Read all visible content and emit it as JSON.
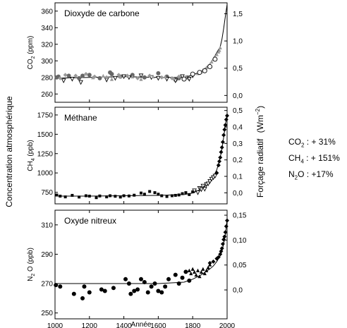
{
  "figure": {
    "y_label_left": "Concentration atmosphérique",
    "y_label_right_main": "Forçage radiatif",
    "y_label_right_unit_base": "(Wm",
    "y_label_right_unit_exp": "−2",
    "y_label_right_unit_close": ")"
  },
  "summary": [
    {
      "formula": "CO",
      "sub": "2",
      "text": " : + 31%"
    },
    {
      "formula": "CH",
      "sub": "4",
      "text": " : + 151%"
    },
    {
      "formula": "N",
      "sub": "2",
      "text": "O : +17%"
    }
  ],
  "chart_data": [
    {
      "type": "scatter",
      "title": "Dioxyde de carbone",
      "ylabel_prefix": "CO",
      "ylabel_sub": "2",
      "ylabel_suffix": "(ppm)",
      "xlim": [
        1000,
        2000
      ],
      "ylim": [
        250,
        370
      ],
      "yticks": [
        260,
        280,
        300,
        320,
        340,
        360
      ],
      "right_ylim": [
        -0.125,
        1.7
      ],
      "right_ticks": [
        "0,0",
        "0,5",
        "1,0",
        "1,5"
      ],
      "right_tick_values": [
        0.0,
        0.5,
        1.0,
        1.5
      ],
      "show_xticklabels": false,
      "series": [
        {
          "marker": "circle",
          "color": "#666666",
          "x": [
            1010,
            1020,
            1080,
            1140,
            1160,
            1200,
            1260,
            1320,
            1330,
            1380,
            1450,
            1520,
            1600,
            1650,
            1700,
            1720,
            1750,
            1770
          ],
          "y": [
            280,
            281,
            282,
            279,
            282,
            283,
            279,
            286,
            284,
            281,
            283,
            280,
            285,
            281,
            277,
            279,
            278,
            280
          ]
        },
        {
          "marker": "triangle-down",
          "color": "#000000",
          "x": [
            1050,
            1100,
            1150,
            1300,
            1350,
            1400,
            1430,
            1500,
            1560,
            1600,
            1650,
            1700,
            1740,
            1780,
            1800
          ],
          "y": [
            276,
            278,
            274,
            277,
            279,
            281,
            280,
            282,
            280,
            279,
            278,
            276,
            281,
            278,
            282
          ]
        },
        {
          "marker": "diamond",
          "color": "#999999",
          "x": [
            1030,
            1060,
            1120,
            1180,
            1230,
            1300,
            1370,
            1420,
            1480,
            1550,
            1620,
            1680,
            1720
          ],
          "y": [
            279,
            283,
            282,
            284,
            281,
            280,
            283,
            282,
            279,
            282,
            280,
            279,
            281
          ]
        },
        {
          "marker": "triangle-up",
          "color": "#999999",
          "x": [
            1220,
            1280,
            1330,
            1380,
            1450,
            1500,
            1570,
            1640,
            1690,
            1760,
            1800,
            1830,
            1850,
            1860,
            1870,
            1880,
            1890,
            1900,
            1910,
            1920,
            1930,
            1940,
            1950,
            1955,
            1960
          ],
          "y": [
            280,
            282,
            278,
            281,
            281,
            278,
            281,
            281,
            279,
            281,
            284,
            285,
            287,
            289,
            290,
            292,
            294,
            296,
            299,
            302,
            305,
            308,
            311,
            313,
            316
          ]
        },
        {
          "marker": "circle-open",
          "color": "#000000",
          "x": [
            1750,
            1800,
            1840,
            1870,
            1900,
            1930
          ],
          "y": [
            278,
            284,
            286,
            288,
            293,
            302
          ]
        }
      ],
      "curve": {
        "x": [
          1000,
          1200,
          1400,
          1600,
          1750,
          1800,
          1850,
          1900,
          1920,
          1940,
          1960,
          1970,
          1980,
          1990,
          2000
        ],
        "y": [
          279,
          280,
          281,
          280,
          280,
          283,
          287,
          296,
          303,
          310,
          317,
          326,
          339,
          354,
          368
        ]
      }
    },
    {
      "type": "scatter",
      "title": "Méthane",
      "ylabel_prefix": "CH",
      "ylabel_sub": "4",
      "ylabel_suffix": "(ppb)",
      "xlim": [
        1000,
        2000
      ],
      "ylim": [
        600,
        1850
      ],
      "yticks": [
        750,
        1000,
        1250,
        1500,
        1750
      ],
      "right_ylim": [
        -0.067,
        0.52
      ],
      "right_ticks": [
        "0,0",
        "0,1",
        "0,2",
        "0,3",
        "0,4",
        "0,5"
      ],
      "right_tick_values": [
        0.0,
        0.1,
        0.2,
        0.3,
        0.4,
        0.5
      ],
      "show_xticklabels": false,
      "series": [
        {
          "marker": "square",
          "color": "#000000",
          "x": [
            1010,
            1030,
            1060,
            1100,
            1140,
            1180,
            1200,
            1240,
            1260,
            1300,
            1320,
            1350,
            1380,
            1400,
            1430,
            1460,
            1500,
            1520,
            1550,
            1580,
            1600,
            1620,
            1650,
            1680,
            1700,
            1720,
            1740,
            1760,
            1780,
            1800
          ],
          "y": [
            715,
            700,
            690,
            710,
            688,
            705,
            700,
            680,
            702,
            690,
            705,
            698,
            688,
            705,
            702,
            712,
            740,
            725,
            760,
            745,
            725,
            705,
            695,
            705,
            710,
            715,
            732,
            745,
            720,
            755
          ]
        },
        {
          "marker": "triangle-down",
          "color": "#000000",
          "x": [
            1810,
            1830,
            1840,
            1850,
            1860,
            1870,
            1880,
            1890,
            1900,
            1910,
            1920,
            1930
          ],
          "y": [
            770,
            745,
            800,
            785,
            830,
            790,
            850,
            860,
            890,
            920,
            940,
            960
          ]
        },
        {
          "marker": "diamond",
          "color": "#000000",
          "x": [
            1940,
            1950,
            1955,
            1960,
            1965,
            1970,
            1975,
            1980,
            1985,
            1990,
            1995,
            2000
          ],
          "y": [
            1000,
            1100,
            1150,
            1200,
            1270,
            1330,
            1400,
            1490,
            1560,
            1620,
            1690,
            1740
          ]
        }
      ],
      "curve": {
        "x": [
          1000,
          1200,
          1400,
          1600,
          1750,
          1800,
          1850,
          1900,
          1920,
          1940,
          1960,
          1970,
          1980,
          1990,
          2000
        ],
        "y": [
          700,
          700,
          705,
          710,
          720,
          740,
          790,
          880,
          950,
          1040,
          1200,
          1310,
          1460,
          1620,
          1760
        ]
      }
    },
    {
      "type": "scatter",
      "title": "Oxyde nitreux",
      "ylabel_prefix": "N",
      "ylabel_sub": "2",
      "ylabel_suffix": "O (ppb)",
      "xlabel": "Année",
      "xlim": [
        1000,
        2000
      ],
      "xticks": [
        1000,
        1200,
        1400,
        1600,
        1800,
        2000
      ],
      "ylim": [
        246,
        320
      ],
      "yticks": [
        250,
        270,
        290,
        310
      ],
      "right_ylim": [
        -0.058,
        0.16
      ],
      "right_ticks": [
        "0,0",
        "0,05",
        "0,10",
        "0,15"
      ],
      "right_tick_values": [
        0.0,
        0.05,
        0.1,
        0.15
      ],
      "show_xticklabels": true,
      "series": [
        {
          "marker": "circle",
          "color": "#000000",
          "x": [
            1005,
            1030,
            1110,
            1160,
            1170,
            1200,
            1270,
            1290,
            1340,
            1410,
            1430,
            1440,
            1460,
            1480,
            1500,
            1520,
            1540,
            1560,
            1580,
            1600,
            1620,
            1640,
            1660,
            1700,
            1720,
            1740,
            1760,
            1780
          ],
          "y": [
            269,
            268,
            263,
            260,
            268,
            264,
            266,
            265,
            267,
            273,
            270,
            263,
            265,
            266,
            273,
            271,
            264,
            268,
            270,
            265,
            264,
            268,
            273,
            276,
            270,
            274,
            278,
            272
          ]
        },
        {
          "marker": "triangle-up",
          "color": "#000000",
          "x": [
            1780,
            1790,
            1800,
            1810,
            1820,
            1830,
            1840,
            1850,
            1860,
            1870,
            1880,
            1890,
            1900
          ],
          "y": [
            279,
            277,
            280,
            278,
            276,
            279,
            275,
            278,
            280,
            277,
            279,
            281,
            283
          ]
        },
        {
          "marker": "diamond",
          "color": "#000000",
          "x": [
            1900,
            1920,
            1940,
            1950,
            1960,
            1965,
            1970,
            1975,
            1980,
            1985,
            1990,
            1995,
            2000
          ],
          "y": [
            284,
            285,
            287,
            288,
            290,
            292,
            294,
            297,
            300,
            302,
            305,
            309,
            313
          ]
        }
      ],
      "curve": {
        "x": [
          1000,
          1200,
          1400,
          1600,
          1750,
          1800,
          1850,
          1900,
          1920,
          1940,
          1960,
          1970,
          1980,
          1990,
          2000
        ],
        "y": [
          270,
          270,
          270,
          270,
          271,
          273,
          276,
          280,
          282,
          285,
          289,
          292,
          297,
          303,
          314
        ]
      }
    }
  ]
}
